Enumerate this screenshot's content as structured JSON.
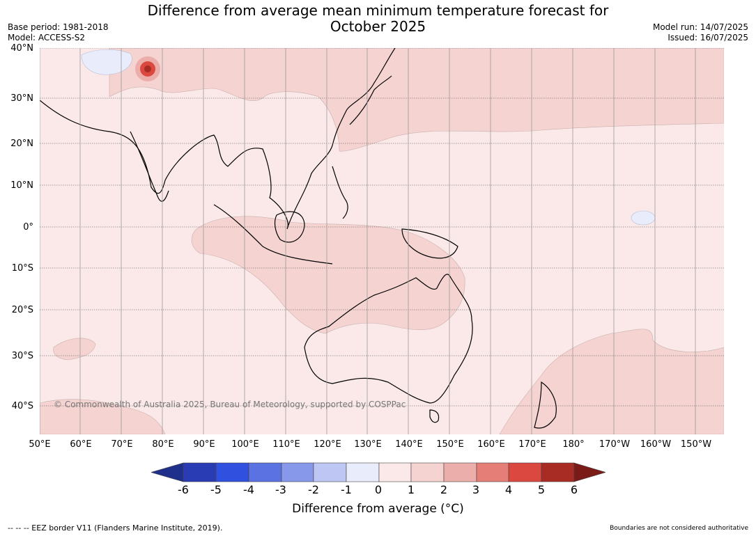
{
  "title": {
    "line1": "Difference from average mean minimum temperature forecast for",
    "line2": "October 2025"
  },
  "meta": {
    "base_period": "Base period: 1981-2018",
    "model": "Model: ACCESS-S2",
    "model_run": "Model run: 14/07/2025",
    "issued": "Issued: 16/07/2025"
  },
  "map": {
    "copyright": "© Commonwealth of Australia 2025, Bureau of Meteorology, supported by COSPPac",
    "lat_labels": [
      "40°N",
      "30°N",
      "20°N",
      "10°N",
      "0°",
      "10°S",
      "20°S",
      "30°S",
      "40°S"
    ],
    "lon_labels": [
      "50°E",
      "60°E",
      "70°E",
      "80°E",
      "90°E",
      "100°E",
      "110°E",
      "120°E",
      "130°E",
      "140°E",
      "150°E",
      "160°E",
      "170°E",
      "180°",
      "170°W",
      "160°W",
      "150°W"
    ],
    "background_color": "#fae9e8",
    "land_outline_color": "#000000"
  },
  "colorbar": {
    "ticks": [
      "-6",
      "-5",
      "-4",
      "-3",
      "-2",
      "-1",
      "0",
      "1",
      "2",
      "3",
      "4",
      "5",
      "6"
    ],
    "colors": [
      "#1f2f8c",
      "#2a3cb4",
      "#3050e0",
      "#5b73e2",
      "#8797ea",
      "#bec6f4",
      "#e9ecfa",
      "#fae9e8",
      "#f4d3d1",
      "#ecaeaa",
      "#e67e78",
      "#db4840",
      "#a82b24",
      "#7a1b17"
    ],
    "label": "Difference from average (°C)"
  },
  "footer": {
    "eez": "--  --  -- EEZ border V11 (Flanders Marine Institute, 2019).",
    "boundaries": "Boundaries are not considered authoritative"
  }
}
